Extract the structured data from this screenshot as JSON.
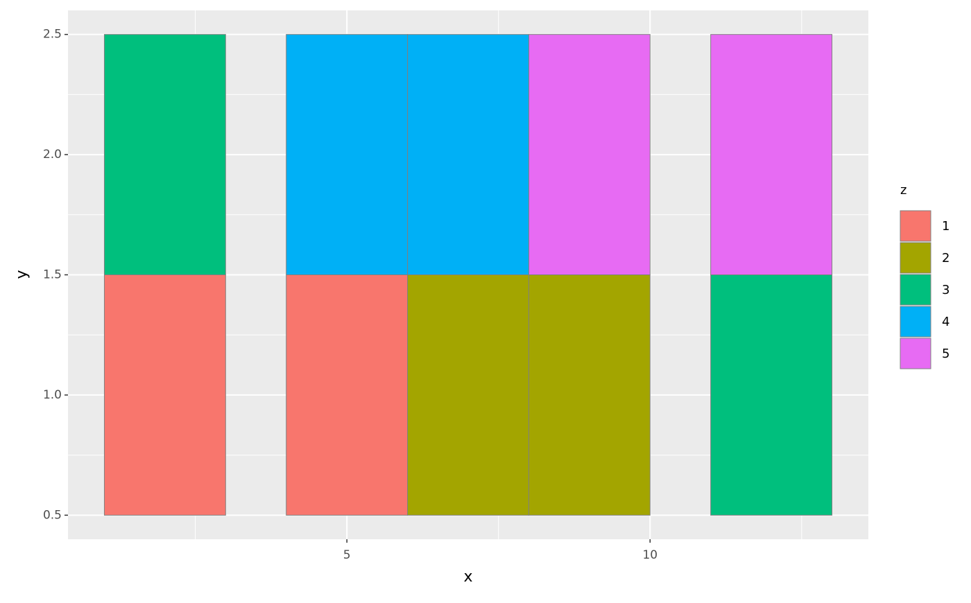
{
  "chart_data": {
    "type": "tile",
    "x_label": "x",
    "y_label": "y",
    "xlim": [
      0.4,
      13.6
    ],
    "ylim": [
      0.4,
      2.6
    ],
    "xticks": [
      5,
      10
    ],
    "yticks": [
      0.5,
      {
        "value": 1,
        "label": "1.0"
      },
      1.5,
      {
        "value": 2,
        "label": "2.0"
      },
      2.5
    ],
    "tile_width": 2,
    "tile_height": 1,
    "grid": true,
    "legend_title": "z",
    "legend_position": "right",
    "series": [
      {
        "name": "1",
        "color": "#F8766D",
        "x": [
          2,
          5
        ],
        "y": [
          1,
          1
        ]
      },
      {
        "name": "2",
        "color": "#A3A500",
        "x": [
          7,
          9
        ],
        "y": [
          1,
          1
        ]
      },
      {
        "name": "3",
        "color": "#00BF7D",
        "x": [
          2,
          12
        ],
        "y": [
          2,
          1
        ]
      },
      {
        "name": "4",
        "color": "#00B0F6",
        "x": [
          5,
          7
        ],
        "y": [
          2,
          2
        ]
      },
      {
        "name": "5",
        "color": "#E76BF3",
        "x": [
          9,
          12
        ],
        "y": [
          2,
          2
        ]
      }
    ]
  }
}
